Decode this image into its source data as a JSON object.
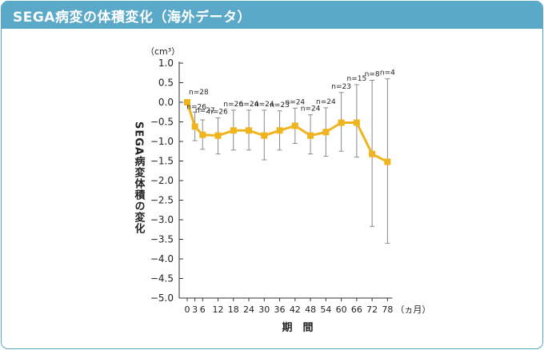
{
  "header": {
    "title": "SEGA病変の体積変化（海外データ）"
  },
  "chart_data": {
    "type": "line",
    "unit_label": "（cm³）",
    "ylabel": "SEGA病変体積の変化",
    "xlabel": "期　間",
    "x_unit": "（ヵ月）",
    "ylim": [
      -5.0,
      1.0
    ],
    "yticks": [
      "1.0",
      "0.5",
      "0.0",
      "−0.5",
      "−1.0",
      "−1.5",
      "−2.0",
      "−2.5",
      "−3.0",
      "−3.5",
      "−4.0",
      "−4.5",
      "−5.0"
    ],
    "ytick_values": [
      1.0,
      0.5,
      0.0,
      -0.5,
      -1.0,
      -1.5,
      -2.0,
      -2.5,
      -3.0,
      -3.5,
      -4.0,
      -4.5,
      -5.0
    ],
    "xticks": [
      "0",
      "3",
      "6",
      "12",
      "18",
      "24",
      "30",
      "36",
      "42",
      "48",
      "54",
      "60",
      "66",
      "72",
      "78"
    ],
    "x": [
      0,
      3,
      6,
      12,
      18,
      24,
      30,
      36,
      42,
      48,
      54,
      60,
      66,
      72,
      78
    ],
    "series": [
      {
        "values": [
          0.0,
          -0.62,
          -0.83,
          -0.85,
          -0.72,
          -0.72,
          -0.85,
          -0.72,
          -0.6,
          -0.85,
          -0.76,
          -0.52,
          -0.52,
          -1.32,
          -1.52
        ],
        "err_upper": [
          0.0,
          -0.25,
          -0.45,
          -0.4,
          -0.2,
          -0.2,
          -0.2,
          -0.22,
          -0.15,
          -0.32,
          -0.14,
          0.25,
          0.45,
          0.56,
          0.6
        ],
        "err_lower": [
          0.0,
          -0.98,
          -1.2,
          -1.32,
          -1.22,
          -1.22,
          -1.47,
          -1.22,
          -1.05,
          -1.32,
          -1.38,
          -1.25,
          -1.4,
          -3.17,
          -3.6
        ],
        "n_labels": [
          "n=28",
          "n=26",
          "n=27",
          "n=26",
          "n=26",
          "n=24",
          "n=24",
          "n=23",
          "n=24",
          "n=24",
          "n=24",
          "n=23",
          "n=15",
          "n=8",
          "n=4"
        ]
      }
    ],
    "color": "#f0b41e",
    "grid": false
  }
}
